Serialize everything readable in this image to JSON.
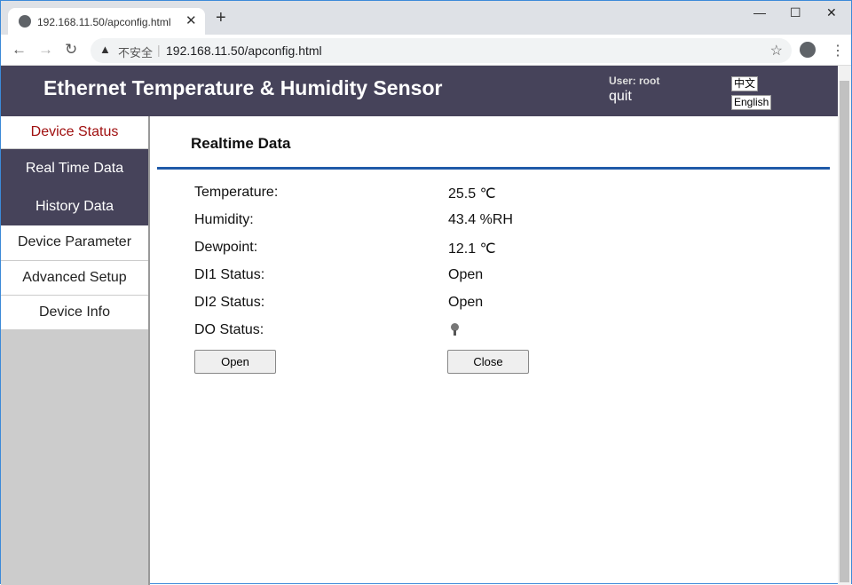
{
  "browser": {
    "tab_title": "192.168.11.50/apconfig.html",
    "not_secure": "不安全",
    "url": "192.168.11.50/apconfig.html"
  },
  "header": {
    "title": "Ethernet Temperature & Humidity Sensor",
    "user": "User: root",
    "quit": "quit",
    "lang_zh": "中文",
    "lang_en": "English"
  },
  "sidebar": {
    "items": [
      {
        "label": "Device Status"
      },
      {
        "label": "Real Time Data"
      },
      {
        "label": "History Data"
      },
      {
        "label": "Device Parameter"
      },
      {
        "label": "Advanced Setup"
      },
      {
        "label": "Device Info"
      }
    ]
  },
  "main": {
    "title": "Realtime Data",
    "rows": [
      {
        "label": "Temperature:",
        "value": "25.5 ℃"
      },
      {
        "label": "Humidity:",
        "value": "43.4 %RH"
      },
      {
        "label": "Dewpoint:",
        "value": "12.1 ℃"
      },
      {
        "label": "DI1 Status:",
        "value": "Open"
      },
      {
        "label": "DI2 Status:",
        "value": "Open"
      },
      {
        "label": "DO Status:",
        "value": ""
      }
    ],
    "do_indicator": "bulb-icon-off",
    "open_button": "Open",
    "close_button": "Close"
  }
}
